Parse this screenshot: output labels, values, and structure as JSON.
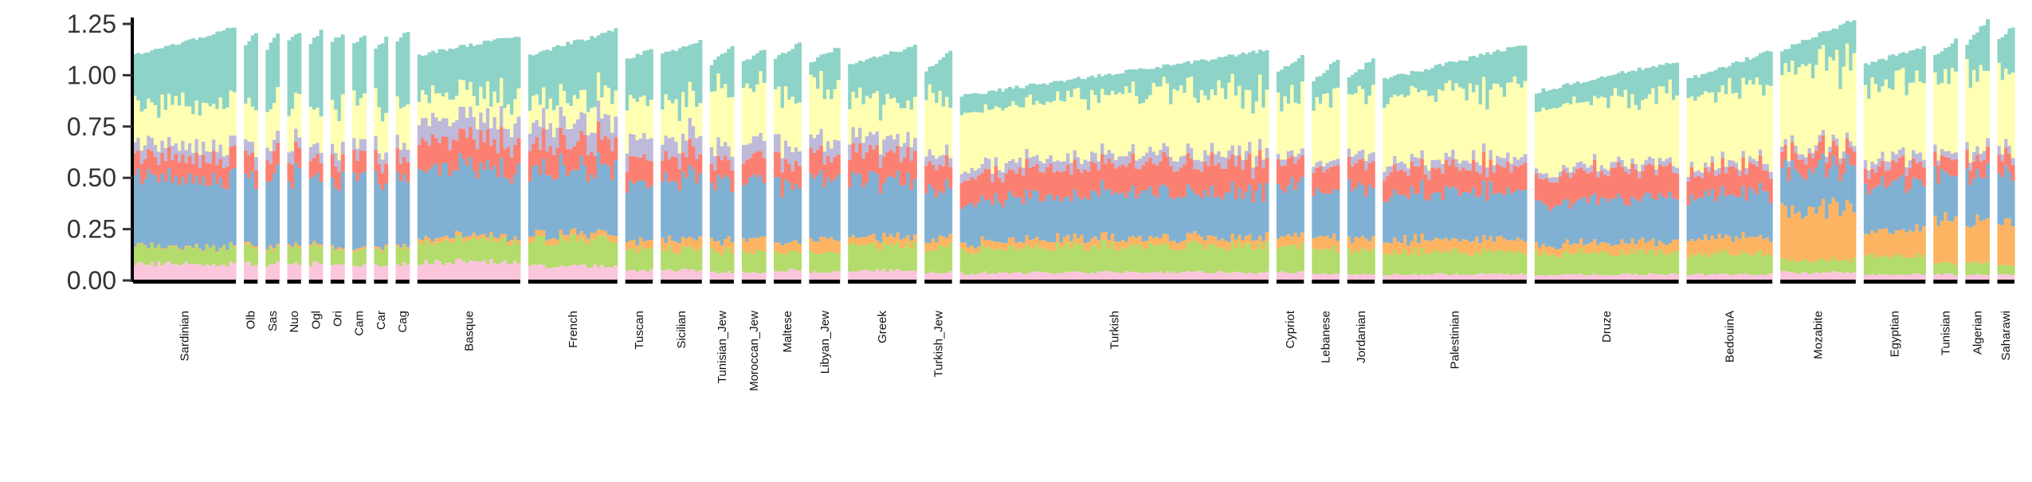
{
  "chart_data": {
    "type": "bar",
    "subtype": "stacked-admixture",
    "title": "",
    "xlabel": "",
    "ylabel": "",
    "ylim": [
      0,
      1.3
    ],
    "y_ticks": [
      "0.00",
      "0.25",
      "0.50",
      "0.75",
      "1.00",
      "1.25"
    ],
    "grid": false,
    "legend": "none",
    "components": [
      {
        "color": "#fbc6dc"
      },
      {
        "color": "#b3dc6c"
      },
      {
        "color": "#fdb462"
      },
      {
        "color": "#80b1d3"
      },
      {
        "color": "#fb8072"
      },
      {
        "color": "#bebada"
      },
      {
        "color": "#ffffb3"
      },
      {
        "color": "#8dd3c7"
      }
    ],
    "populations": [
      {
        "label": "Sardinian",
        "n": 30,
        "total": [
          1.1,
          1.23
        ],
        "c": [
          0.08,
          0.08,
          0.0,
          0.33,
          0.1,
          0.06,
          0.2
        ]
      },
      {
        "label": "Olb",
        "n": 4,
        "total": [
          1.15,
          1.21
        ],
        "c": [
          0.08,
          0.08,
          0.01,
          0.33,
          0.1,
          0.06,
          0.2
        ]
      },
      {
        "label": "Sas",
        "n": 4,
        "total": [
          1.13,
          1.2
        ],
        "c": [
          0.08,
          0.08,
          0.01,
          0.33,
          0.1,
          0.06,
          0.2
        ]
      },
      {
        "label": "Nuo",
        "n": 4,
        "total": [
          1.17,
          1.2
        ],
        "c": [
          0.08,
          0.08,
          0.01,
          0.33,
          0.1,
          0.06,
          0.2
        ]
      },
      {
        "label": "Ogl",
        "n": 4,
        "total": [
          1.16,
          1.22
        ],
        "c": [
          0.08,
          0.08,
          0.01,
          0.33,
          0.1,
          0.06,
          0.2
        ]
      },
      {
        "label": "Ori",
        "n": 4,
        "total": [
          1.17,
          1.2
        ],
        "c": [
          0.08,
          0.08,
          0.01,
          0.33,
          0.1,
          0.06,
          0.2
        ]
      },
      {
        "label": "Cam",
        "n": 4,
        "total": [
          1.15,
          1.2
        ],
        "c": [
          0.08,
          0.08,
          0.01,
          0.33,
          0.1,
          0.06,
          0.2
        ]
      },
      {
        "label": "Car",
        "n": 4,
        "total": [
          1.12,
          1.18
        ],
        "c": [
          0.08,
          0.08,
          0.01,
          0.33,
          0.1,
          0.06,
          0.2
        ]
      },
      {
        "label": "Cag",
        "n": 4,
        "total": [
          1.16,
          1.22
        ],
        "c": [
          0.08,
          0.08,
          0.01,
          0.33,
          0.1,
          0.06,
          0.2
        ]
      },
      {
        "label": "Basque",
        "n": 30,
        "total": [
          1.1,
          1.19
        ],
        "c": [
          0.09,
          0.1,
          0.02,
          0.33,
          0.14,
          0.1,
          0.12
        ]
      },
      {
        "label": "French",
        "n": 26,
        "total": [
          1.1,
          1.22
        ],
        "c": [
          0.07,
          0.13,
          0.03,
          0.32,
          0.13,
          0.1,
          0.12
        ]
      },
      {
        "label": "Tuscan",
        "n": 8,
        "total": [
          1.08,
          1.13
        ],
        "c": [
          0.05,
          0.1,
          0.04,
          0.28,
          0.12,
          0.1,
          0.18
        ]
      },
      {
        "label": "Sicilian",
        "n": 12,
        "total": [
          1.1,
          1.17
        ],
        "c": [
          0.05,
          0.1,
          0.05,
          0.3,
          0.11,
          0.09,
          0.18
        ]
      },
      {
        "label": "Tunisian_Jew",
        "n": 7,
        "total": [
          1.05,
          1.15
        ],
        "c": [
          0.04,
          0.1,
          0.05,
          0.28,
          0.1,
          0.08,
          0.28
        ]
      },
      {
        "label": "Moroccan_Jew",
        "n": 7,
        "total": [
          1.06,
          1.13
        ],
        "c": [
          0.04,
          0.1,
          0.07,
          0.28,
          0.11,
          0.08,
          0.26
        ]
      },
      {
        "label": "Maltese",
        "n": 8,
        "total": [
          1.08,
          1.16
        ],
        "c": [
          0.05,
          0.1,
          0.05,
          0.28,
          0.11,
          0.08,
          0.24
        ]
      },
      {
        "label": "Libyan_Jew",
        "n": 9,
        "total": [
          1.06,
          1.14
        ],
        "c": [
          0.04,
          0.1,
          0.07,
          0.28,
          0.11,
          0.07,
          0.26
        ]
      },
      {
        "label": "Greek",
        "n": 20,
        "total": [
          1.05,
          1.14
        ],
        "c": [
          0.05,
          0.12,
          0.04,
          0.28,
          0.13,
          0.07,
          0.18
        ]
      },
      {
        "label": "Turkish_Jew",
        "n": 8,
        "total": [
          1.02,
          1.12
        ],
        "c": [
          0.04,
          0.12,
          0.05,
          0.25,
          0.12,
          0.05,
          0.28
        ]
      },
      {
        "label": "Turkish",
        "n": 90,
        "total": [
          0.9,
          1.12
        ],
        "c": [
          0.04,
          0.13,
          0.04,
          0.22,
          0.14,
          0.05,
          0.3
        ]
      },
      {
        "label": "Cypriot",
        "n": 8,
        "total": [
          1.01,
          1.1
        ],
        "c": [
          0.04,
          0.12,
          0.05,
          0.25,
          0.12,
          0.03,
          0.28
        ]
      },
      {
        "label": "Lebanese",
        "n": 8,
        "total": [
          0.97,
          1.08
        ],
        "c": [
          0.03,
          0.12,
          0.06,
          0.24,
          0.11,
          0.03,
          0.3
        ]
      },
      {
        "label": "Jordanian",
        "n": 8,
        "total": [
          0.98,
          1.08
        ],
        "c": [
          0.03,
          0.11,
          0.06,
          0.24,
          0.12,
          0.04,
          0.32
        ]
      },
      {
        "label": "Palestinian",
        "n": 42,
        "total": [
          0.98,
          1.15
        ],
        "c": [
          0.03,
          0.11,
          0.06,
          0.23,
          0.12,
          0.04,
          0.34
        ]
      },
      {
        "label": "Druze",
        "n": 42,
        "total": [
          0.92,
          1.07
        ],
        "c": [
          0.03,
          0.11,
          0.05,
          0.22,
          0.14,
          0.03,
          0.34
        ]
      },
      {
        "label": "BedouinA",
        "n": 25,
        "total": [
          0.98,
          1.12
        ],
        "c": [
          0.03,
          0.1,
          0.08,
          0.22,
          0.12,
          0.03,
          0.36
        ]
      },
      {
        "label": "Mozabite",
        "n": 22,
        "total": [
          1.12,
          1.27
        ],
        "c": [
          0.04,
          0.06,
          0.25,
          0.2,
          0.08,
          0.03,
          0.4
        ]
      },
      {
        "label": "Egyptian",
        "n": 18,
        "total": [
          1.05,
          1.14
        ],
        "c": [
          0.03,
          0.09,
          0.12,
          0.23,
          0.09,
          0.04,
          0.36
        ]
      },
      {
        "label": "Tunisian",
        "n": 7,
        "total": [
          1.1,
          1.17
        ],
        "c": [
          0.03,
          0.06,
          0.21,
          0.22,
          0.08,
          0.03,
          0.36
        ]
      },
      {
        "label": "Algerian",
        "n": 7,
        "total": [
          1.15,
          1.27
        ],
        "c": [
          0.03,
          0.06,
          0.2,
          0.24,
          0.08,
          0.04,
          0.38
        ]
      },
      {
        "label": "Saharawi",
        "n": 5,
        "total": [
          1.17,
          1.24
        ],
        "c": [
          0.03,
          0.05,
          0.2,
          0.26,
          0.08,
          0.04,
          0.38
        ]
      }
    ]
  }
}
